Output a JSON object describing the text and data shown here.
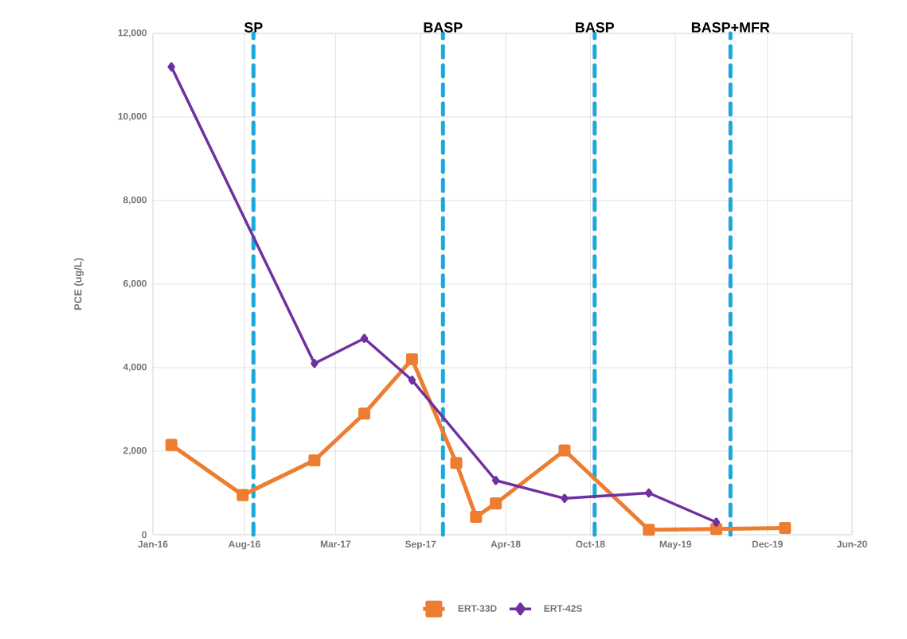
{
  "chart_data": {
    "type": "line",
    "ylabel": "PCE (ug/L)",
    "xlim": [
      "2016-01-01",
      "2020-06-15"
    ],
    "ylim": [
      0,
      12000
    ],
    "xticks": [
      {
        "value": "2016-01-01",
        "label": "Jan-16"
      },
      {
        "value": "2016-08-01",
        "label": "Aug-16"
      },
      {
        "value": "2017-03-01",
        "label": "Mar-17"
      },
      {
        "value": "2017-09-15",
        "label": "Sep-17"
      },
      {
        "value": "2018-04-01",
        "label": "Apr-18"
      },
      {
        "value": "2018-10-15",
        "label": "Oct-18"
      },
      {
        "value": "2019-05-01",
        "label": "May-19"
      },
      {
        "value": "2019-12-01",
        "label": "Dec-19"
      },
      {
        "value": "2020-06-15",
        "label": "Jun-20"
      }
    ],
    "yticks": [
      0,
      {
        "value": 2000,
        "label": "2,000"
      },
      {
        "value": 4000,
        "label": "4,000"
      },
      {
        "value": 6000,
        "label": "6,000"
      },
      {
        "value": 8000,
        "label": "8,000"
      },
      {
        "value": 10000,
        "label": "10,000"
      },
      {
        "value": 12000,
        "label": "12,000"
      }
    ],
    "grid": true,
    "legend": "bottom",
    "line_style": "solid",
    "series": [
      {
        "name": "ERT-33D",
        "color": "#ed7d31",
        "marker": "square",
        "x": [
          "2016-02-13",
          "2016-07-28",
          "2017-01-11",
          "2017-05-07",
          "2017-08-26",
          "2017-12-07",
          "2018-01-22",
          "2018-03-09",
          "2018-08-16",
          "2019-02-28",
          "2019-08-04",
          "2020-01-11"
        ],
        "values": [
          2150,
          950,
          1780,
          2900,
          4200,
          1720,
          430,
          750,
          2020,
          120,
          140,
          160
        ]
      },
      {
        "name": "ERT-42S",
        "color": "#7030a0",
        "marker": "diamond",
        "x": [
          "2016-02-13",
          "2017-01-11",
          "2017-05-07",
          "2017-08-26",
          "2018-03-09",
          "2018-08-16",
          "2019-02-28",
          "2019-08-04"
        ],
        "values": [
          11200,
          4100,
          4700,
          3700,
          1300,
          870,
          1000,
          300
        ]
      }
    ],
    "ref_lines": [
      {
        "axis": "x",
        "value": "2016-08-22",
        "label": "SP",
        "color": "#1aa7dc",
        "line_style": "dashed"
      },
      {
        "axis": "x",
        "value": "2017-11-06",
        "label": "BASP",
        "color": "#1aa7dc",
        "line_style": "dashed"
      },
      {
        "axis": "x",
        "value": "2018-10-25",
        "label": "BASP",
        "color": "#1aa7dc",
        "line_style": "dashed"
      },
      {
        "axis": "x",
        "value": "2019-09-06",
        "label": "BASP+MFR",
        "color": "#1aa7dc",
        "line_style": "dashed"
      }
    ]
  }
}
